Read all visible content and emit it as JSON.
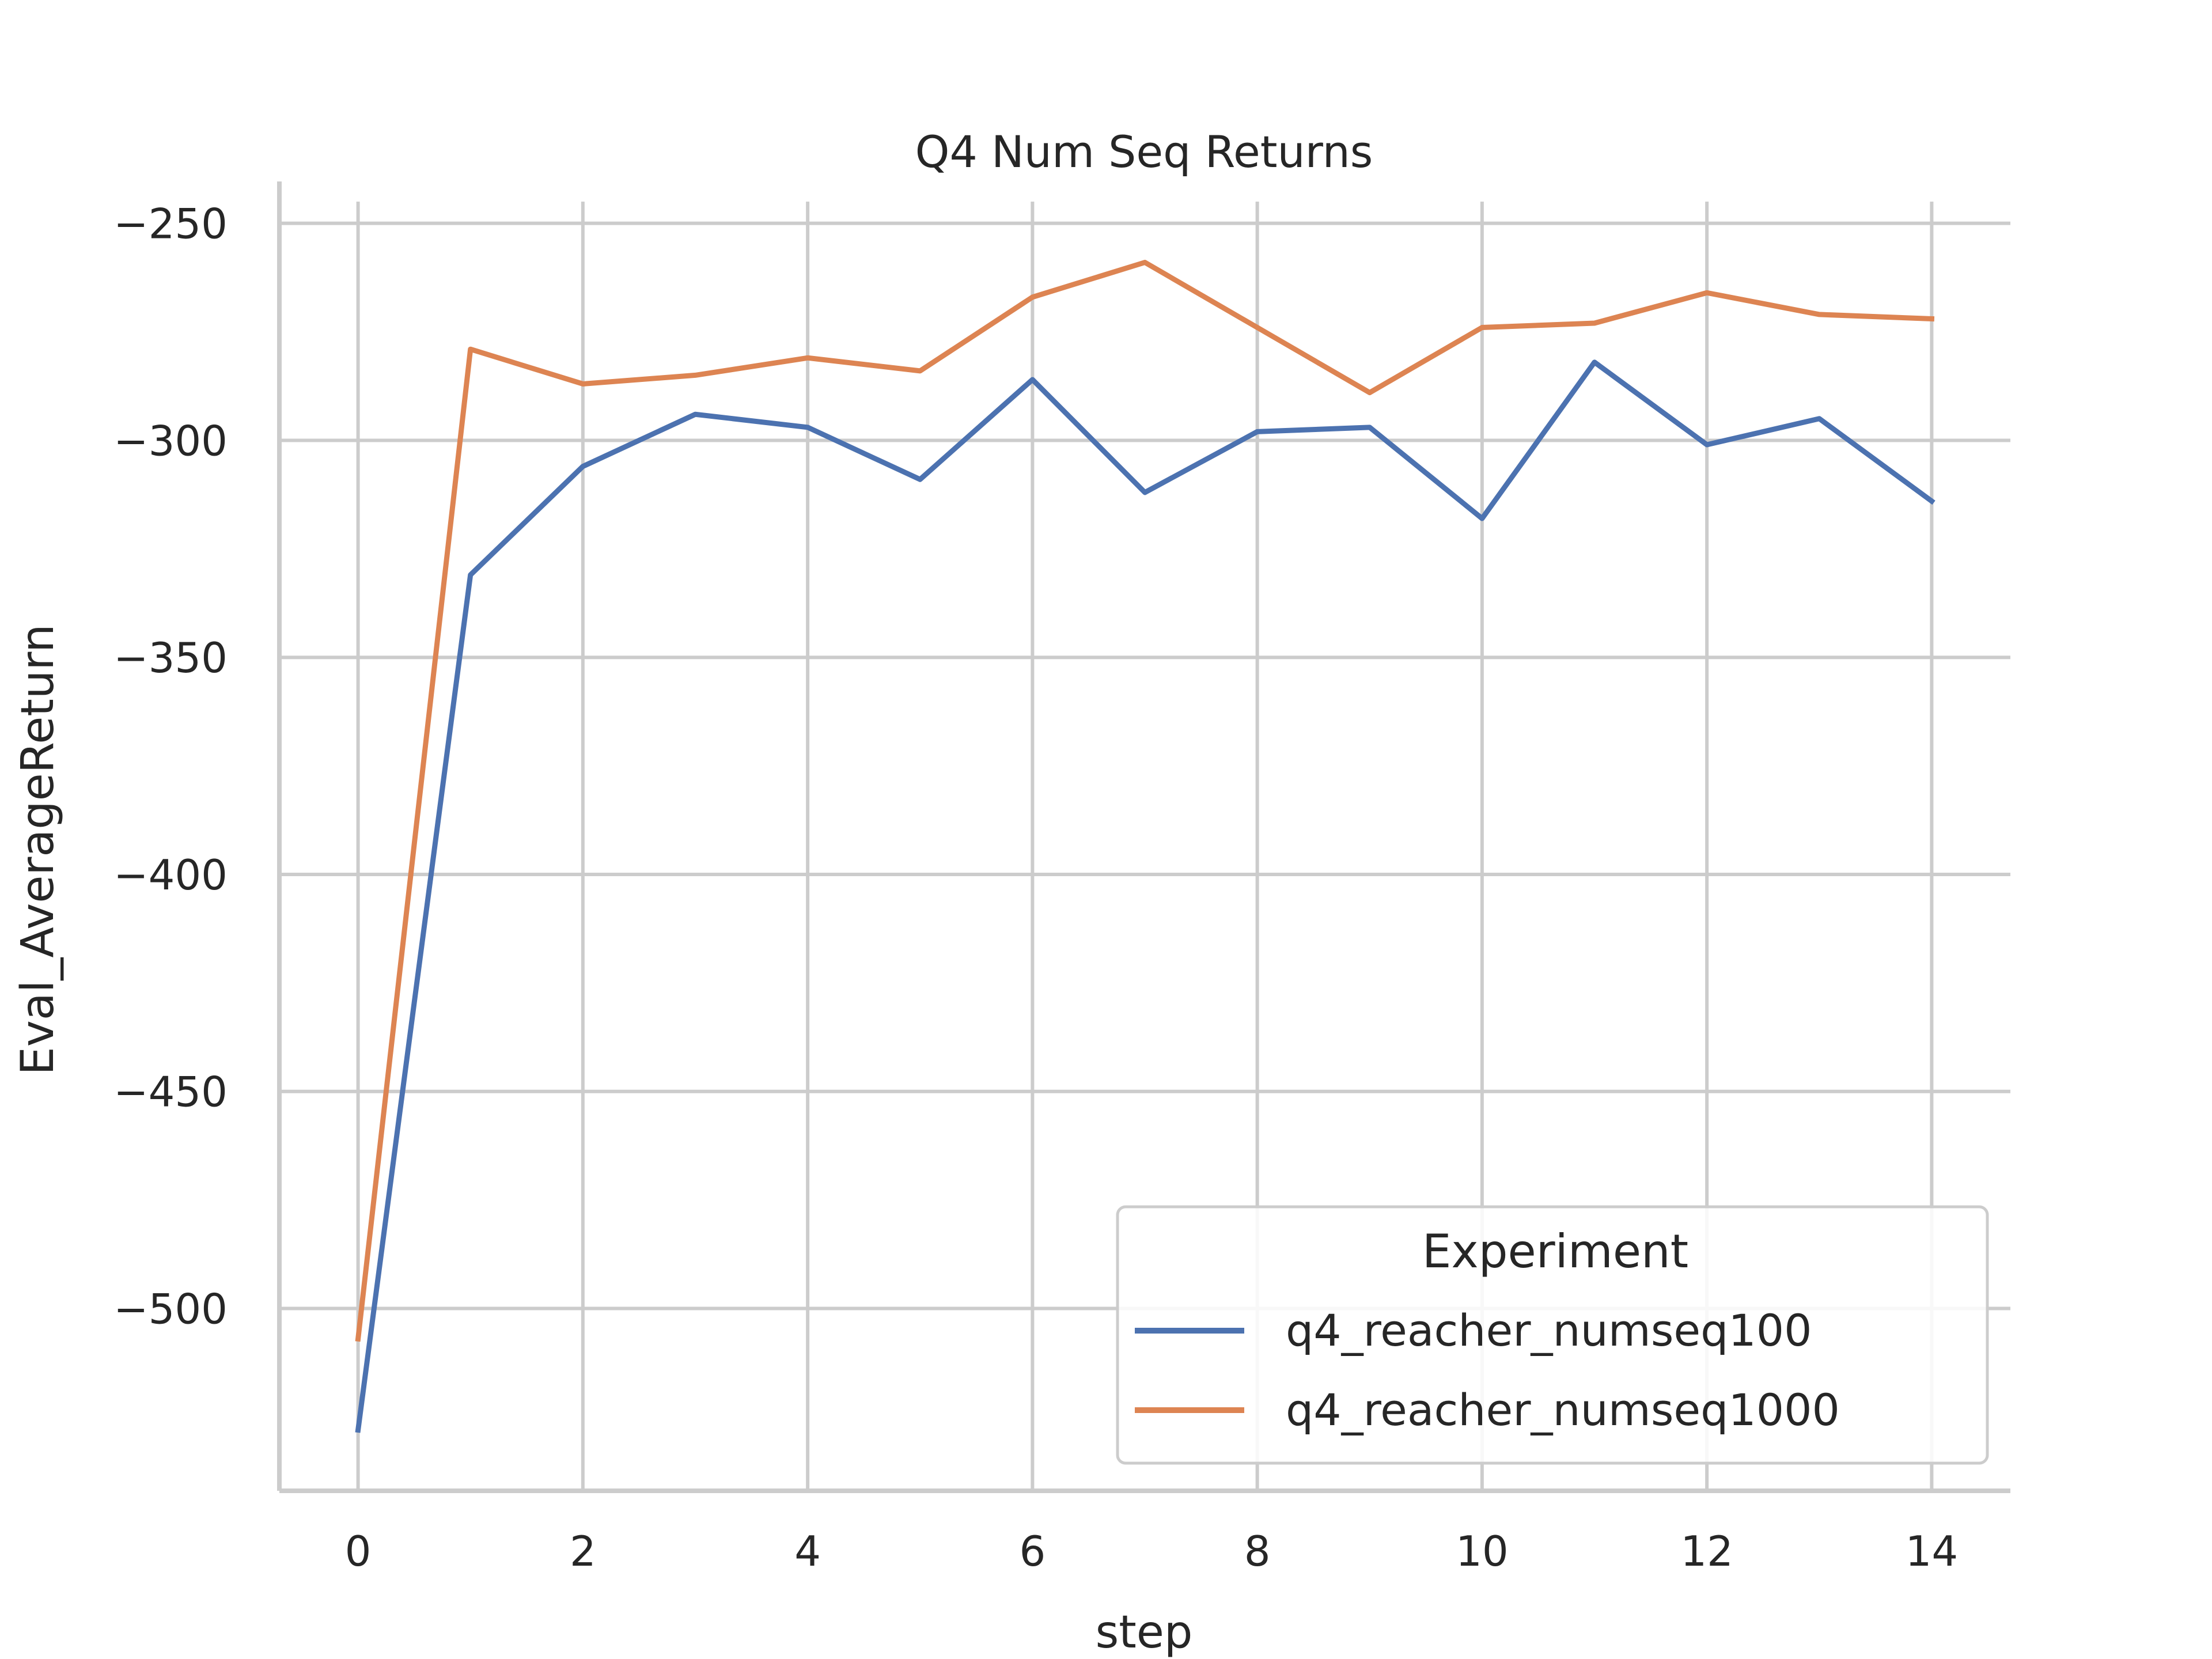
{
  "chart_data": {
    "type": "line",
    "title": "Q4 Num Seq Returns",
    "xlabel": "step",
    "ylabel": "Eval_AverageReturn",
    "x": [
      0,
      1,
      2,
      3,
      4,
      5,
      6,
      7,
      8,
      9,
      10,
      11,
      12,
      13,
      14
    ],
    "xticks": [
      0,
      2,
      4,
      6,
      8,
      10,
      12,
      14
    ],
    "yticks": [
      -250,
      -300,
      -350,
      -400,
      -450,
      -500
    ],
    "xlim": [
      -0.7,
      14.7
    ],
    "ylim": [
      -542,
      -245
    ],
    "grid": true,
    "legend": {
      "title": "Experiment",
      "position": "lower-right"
    },
    "series": [
      {
        "name": "q4_reacher_numseq100",
        "color": "#4c72b0",
        "values": [
          -528,
          -331,
          -306,
          -294,
          -297,
          -309,
          -286,
          -312,
          -298,
          -297,
          -318,
          -282,
          -301,
          -295,
          -314
        ]
      },
      {
        "name": "q4_reacher_numseq1000",
        "color": "#dd8452",
        "values": [
          -507,
          -279,
          -287,
          -285,
          -281,
          -284,
          -267,
          -259,
          -274,
          -289,
          -274,
          -273,
          -266,
          -271,
          -272
        ]
      }
    ]
  }
}
